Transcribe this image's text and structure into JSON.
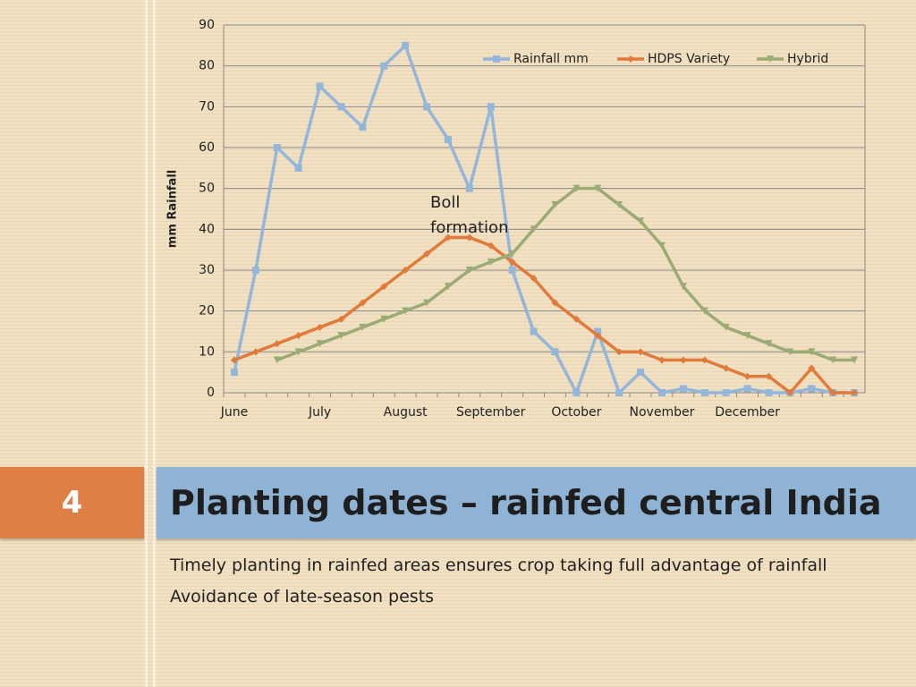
{
  "chart_data": {
    "type": "line",
    "categories": [
      "June",
      null,
      null,
      null,
      "July",
      null,
      null,
      null,
      "August",
      null,
      null,
      null,
      "September",
      null,
      null,
      null,
      "October",
      null,
      null,
      null,
      "November",
      null,
      null,
      null,
      "December",
      null,
      null,
      null,
      null,
      null
    ],
    "series": [
      {
        "name": "Rainfall mm",
        "color": "#93b6da",
        "marker": "square",
        "values": [
          5,
          30,
          60,
          55,
          75,
          70,
          65,
          80,
          85,
          70,
          62,
          50,
          70,
          30,
          15,
          10,
          0,
          15,
          0,
          5,
          0,
          1,
          0,
          0,
          1,
          0,
          0,
          1,
          0,
          0
        ]
      },
      {
        "name": "HDPS Variety",
        "color": "#e07b3c",
        "marker": "diamond",
        "values": [
          8,
          10,
          12,
          14,
          16,
          18,
          22,
          26,
          30,
          34,
          38,
          38,
          36,
          32,
          28,
          22,
          18,
          14,
          10,
          10,
          8,
          8,
          8,
          6,
          4,
          4,
          0,
          6,
          0,
          0
        ]
      },
      {
        "name": "Hybrid",
        "color": "#9bab74",
        "marker": "triangle",
        "values": [
          null,
          null,
          8,
          10,
          12,
          14,
          16,
          18,
          20,
          22,
          26,
          30,
          32,
          34,
          40,
          46,
          50,
          50,
          46,
          42,
          36,
          26,
          20,
          16,
          14,
          12,
          10,
          10,
          8,
          8
        ]
      }
    ],
    "ylabel": "mm Rainfall",
    "annotation": "Boll formation",
    "ylim": [
      0,
      90
    ],
    "yticks": [
      0,
      10,
      20,
      30,
      40,
      50,
      60,
      70,
      80,
      90
    ],
    "grid": true,
    "legend": "top-right"
  },
  "slide": {
    "number": "4",
    "title": "Planting dates – rainfed central India",
    "bullets": [
      "Timely planting in rainfed areas ensures crop taking full advantage of rainfall",
      "Avoidance of late-season pests"
    ]
  }
}
